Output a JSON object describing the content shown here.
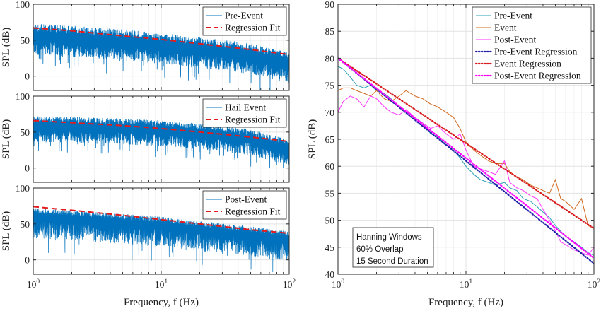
{
  "chart_data": [
    {
      "type": "line",
      "panel": "left-top",
      "xscale": "log",
      "xlim": [
        1,
        100
      ],
      "ylim": [
        -20,
        100
      ],
      "yticks": [
        0,
        50,
        100
      ],
      "xticks": [],
      "xticklabels": [],
      "ylabel": "SPL (dB)",
      "xlabel": "",
      "grid": true,
      "legend_position": "top-right",
      "series": [
        {
          "name": "Pre-Event",
          "style": "spectrum",
          "color": "#0072BD",
          "trend": {
            "x": [
              1,
              2,
              5,
              10,
              20,
              50,
              100
            ],
            "y": [
              55,
              52,
              47,
              42,
              36,
              28,
              15
            ]
          },
          "spread": [
            25,
            18
          ]
        },
        {
          "name": "Regression Fit",
          "style": "dashed",
          "color": "#E41A1C",
          "x": [
            1,
            2,
            5,
            10,
            20,
            50,
            100
          ],
          "y": [
            67,
            63,
            56,
            51,
            45,
            37,
            30
          ]
        }
      ]
    },
    {
      "type": "line",
      "panel": "left-middle",
      "xscale": "log",
      "xlim": [
        1,
        100
      ],
      "ylim": [
        -20,
        100
      ],
      "yticks": [
        0,
        50,
        100
      ],
      "xticks": [],
      "xticklabels": [],
      "ylabel": "SPL (dB)",
      "xlabel": "",
      "grid": true,
      "legend_position": "top-right",
      "series": [
        {
          "name": "Hail Event",
          "style": "spectrum",
          "color": "#0072BD",
          "trend": {
            "x": [
              1,
              2,
              5,
              10,
              20,
              50,
              100
            ],
            "y": [
              58,
              57,
              55,
              52,
              48,
              40,
              25
            ]
          },
          "spread": [
            22,
            14
          ]
        },
        {
          "name": "Regression Fit",
          "style": "dashed",
          "color": "#E41A1C",
          "x": [
            1,
            2,
            5,
            10,
            20,
            50,
            100
          ],
          "y": [
            66,
            63,
            59,
            55,
            50,
            43,
            37
          ]
        }
      ]
    },
    {
      "type": "line",
      "panel": "left-bottom",
      "xscale": "log",
      "xlim": [
        1,
        100
      ],
      "ylim": [
        -20,
        100
      ],
      "yticks": [
        0,
        50,
        100
      ],
      "xticks": [
        1,
        10,
        100
      ],
      "xticklabels": [
        "10^0",
        "10^1",
        "10^2"
      ],
      "ylabel": "SPL (dB)",
      "xlabel": "Frequency, f (Hz)",
      "grid": true,
      "legend_position": "top-right",
      "series": [
        {
          "name": "Post-Event",
          "style": "spectrum-sparse",
          "color": "#0072BD",
          "trend": {
            "x": [
              1,
              2,
              5,
              10,
              20,
              50,
              100
            ],
            "y": [
              60,
              57,
              52,
              48,
              42,
              35,
              28
            ]
          },
          "spread": [
            30,
            12
          ]
        },
        {
          "name": "Regression Fit",
          "style": "dashed",
          "color": "#E41A1C",
          "x": [
            1,
            2,
            5,
            10,
            20,
            50,
            100
          ],
          "y": [
            74,
            69,
            62,
            56,
            50,
            42,
            37
          ]
        }
      ]
    },
    {
      "type": "line",
      "panel": "right",
      "xscale": "log",
      "xlim": [
        1,
        100
      ],
      "ylim": [
        40,
        90
      ],
      "yticks": [
        40,
        45,
        50,
        55,
        60,
        65,
        70,
        75,
        80,
        85,
        90
      ],
      "xticks": [
        1,
        10,
        100
      ],
      "xticklabels": [
        "10^0",
        "10^1",
        "10^2"
      ],
      "ylabel": "SPL (dB)",
      "xlabel": "Frequency, f (Hz)",
      "grid": true,
      "legend_position": "top-right",
      "annotation": [
        "Hanning Windows",
        "60% Overlap",
        "15 Second Duration"
      ],
      "series": [
        {
          "name": "Pre-Event",
          "color": "#2BA0B5",
          "style": "solid",
          "x": [
            1,
            1.1,
            1.25,
            1.4,
            1.6,
            1.8,
            2,
            2.3,
            2.6,
            3,
            3.4,
            4,
            4.6,
            5.3,
            6,
            7,
            8,
            9,
            10,
            11.5,
            13,
            15,
            17,
            20,
            22,
            25,
            28,
            32,
            36,
            40,
            45,
            50,
            55,
            60,
            70,
            80,
            90,
            100
          ],
          "y": [
            78.5,
            78,
            76.5,
            75,
            74.5,
            75,
            74,
            73.5,
            72.5,
            71,
            70,
            69,
            68,
            66,
            65.5,
            64,
            63,
            61.5,
            60,
            58.5,
            57.5,
            57,
            56.5,
            57,
            56,
            55.5,
            54,
            53.5,
            52.5,
            51.5,
            50.5,
            49,
            48,
            47,
            46,
            45,
            44,
            43.5
          ]
        },
        {
          "name": "Event",
          "color": "#D2691E",
          "style": "solid",
          "x": [
            1,
            1.1,
            1.25,
            1.4,
            1.6,
            1.8,
            2,
            2.3,
            2.6,
            3,
            3.4,
            4,
            4.6,
            5.3,
            6,
            7,
            8,
            9,
            10,
            11.5,
            13,
            15,
            17,
            20,
            22,
            25,
            28,
            32,
            36,
            40,
            45,
            50,
            55,
            60,
            70,
            80,
            90,
            100
          ],
          "y": [
            74,
            74.5,
            74.5,
            74,
            73.5,
            73,
            74,
            72.5,
            72,
            73,
            74,
            73,
            72.5,
            71.5,
            71,
            70,
            69,
            67,
            64.5,
            63,
            62,
            61,
            60.5,
            60.5,
            59,
            58,
            57.5,
            56.5,
            56,
            55.5,
            55,
            57.5,
            54,
            53.5,
            52,
            54,
            49,
            48.5
          ]
        },
        {
          "name": "Post-Event",
          "color": "#FF33FF",
          "style": "solid",
          "x": [
            1,
            1.1,
            1.25,
            1.4,
            1.6,
            1.8,
            2,
            2.3,
            2.6,
            3,
            3.4,
            4,
            4.6,
            5.3,
            6,
            7,
            8,
            9,
            10,
            11.5,
            13,
            15,
            17,
            20,
            22,
            25,
            28,
            32,
            36,
            40,
            45,
            50,
            55,
            60,
            70,
            80,
            90,
            100
          ],
          "y": [
            70,
            72,
            73,
            72.5,
            71,
            73,
            72.5,
            71,
            70,
            69.5,
            70.5,
            69,
            68,
            67,
            67.5,
            66,
            65,
            66,
            63,
            60,
            59.5,
            59,
            58.5,
            61,
            57,
            56,
            55.5,
            54.5,
            54,
            52,
            50,
            48,
            46,
            45.5,
            44.5,
            44,
            43.5,
            45
          ]
        },
        {
          "name": "Pre-Event Regression",
          "color": "#1F1FA8",
          "style": "dotted",
          "x": [
            1,
            100
          ],
          "y": [
            80,
            42
          ]
        },
        {
          "name": "Event Regression",
          "color": "#D7191C",
          "style": "dotted",
          "x": [
            1,
            100
          ],
          "y": [
            80,
            48.5
          ]
        },
        {
          "name": "Post-Event Regression",
          "color": "#FF00FF",
          "style": "dotted",
          "x": [
            1,
            100
          ],
          "y": [
            80,
            43
          ]
        }
      ]
    }
  ]
}
